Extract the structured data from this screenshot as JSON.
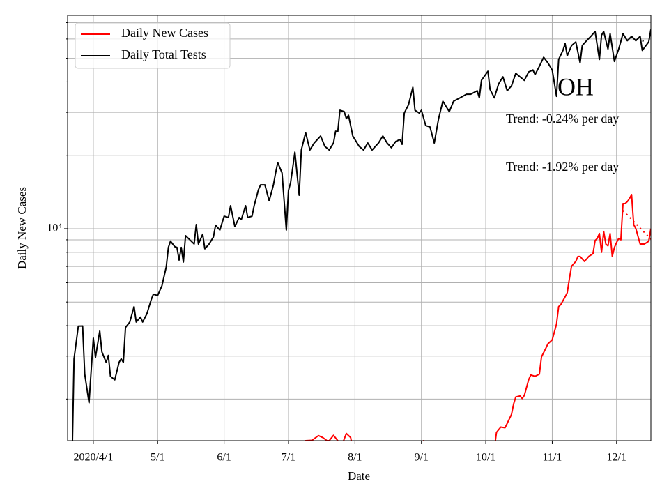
{
  "chart_data": {
    "type": "line",
    "title": "OH",
    "x_label": "Date",
    "y_label": "Daily New Cases",
    "yscale": "log",
    "grid": true,
    "legend_position": "upper left",
    "xlim": [
      "2020-03-20",
      "2020-12-17"
    ],
    "xticks": [
      {
        "value": "2020-04-01",
        "label": "2020/4/1"
      },
      {
        "value": "2020-05-01",
        "label": "5/1"
      },
      {
        "value": "2020-06-01",
        "label": "6/1"
      },
      {
        "value": "2020-07-01",
        "label": "7/1"
      },
      {
        "value": "2020-08-01",
        "label": "8/1"
      },
      {
        "value": "2020-09-01",
        "label": "9/1"
      },
      {
        "value": "2020-10-01",
        "label": "10/1"
      },
      {
        "value": "2020-11-01",
        "label": "11/1"
      },
      {
        "value": "2020-12-01",
        "label": "12/1"
      }
    ],
    "ylim": [
      1350,
      75000
    ],
    "yticks": [
      {
        "value": 10000,
        "label": "10⁴"
      }
    ],
    "minor_yticks": [
      2000,
      3000,
      4000,
      5000,
      6000,
      7000,
      8000,
      9000,
      20000,
      30000,
      40000,
      50000,
      60000,
      70000
    ],
    "annotations": [
      "Trend: -0.24% per day",
      "Trend: -1.92% per day"
    ],
    "series": [
      {
        "name": "Daily New Cases",
        "color": "#ff0000",
        "x": [
          "2020-07-05",
          "2020-07-09",
          "2020-07-12",
          "2020-07-15",
          "2020-07-17",
          "2020-07-19",
          "2020-07-20",
          "2020-07-22",
          "2020-07-24",
          "2020-07-26",
          "2020-07-28",
          "2020-07-30",
          "2020-07-31",
          "2020-08-10",
          "2020-08-25",
          "2020-09-02",
          "2020-09-05",
          "2020-09-20",
          "2020-10-04",
          "2020-10-05",
          "2020-10-06",
          "2020-10-08",
          "2020-10-10",
          "2020-10-11",
          "2020-10-13",
          "2020-10-14",
          "2020-10-15",
          "2020-10-17",
          "2020-10-18",
          "2020-10-19",
          "2020-10-21",
          "2020-10-22",
          "2020-10-24",
          "2020-10-26",
          "2020-10-27",
          "2020-10-29",
          "2020-10-30",
          "2020-11-01",
          "2020-11-03",
          "2020-11-04",
          "2020-11-05",
          "2020-11-07",
          "2020-11-08",
          "2020-11-09",
          "2020-11-10",
          "2020-11-12",
          "2020-11-13",
          "2020-11-14",
          "2020-11-16",
          "2020-11-17",
          "2020-11-18",
          "2020-11-20",
          "2020-11-21",
          "2020-11-22",
          "2020-11-23",
          "2020-11-24",
          "2020-11-25",
          "2020-11-26",
          "2020-11-27",
          "2020-11-28",
          "2020-11-29",
          "2020-11-30",
          "2020-12-01",
          "2020-12-02",
          "2020-12-03",
          "2020-12-04",
          "2020-12-05",
          "2020-12-06",
          "2020-12-07",
          "2020-12-08",
          "2020-12-09",
          "2020-12-10",
          "2020-12-12",
          "2020-12-14",
          "2020-12-16",
          "2020-12-17"
        ],
        "values": [
          1200,
          1350,
          1355,
          1416,
          1390,
          1350,
          1350,
          1420,
          1350,
          1300,
          1445,
          1390,
          1250,
          1150,
          1200,
          1350,
          1200,
          1150,
          1200,
          1250,
          1460,
          1535,
          1525,
          1590,
          1730,
          1910,
          2040,
          2060,
          2010,
          2070,
          2400,
          2510,
          2480,
          2530,
          2980,
          3230,
          3370,
          3500,
          4060,
          4790,
          4880,
          5250,
          5460,
          6230,
          7010,
          7340,
          7690,
          7690,
          7340,
          7500,
          7690,
          7890,
          8940,
          9120,
          9550,
          8000,
          9740,
          8650,
          8500,
          9550,
          7690,
          8375,
          8770,
          9120,
          9000,
          12670,
          12670,
          12900,
          13270,
          13800,
          10400,
          10000,
          8650,
          8650,
          8880,
          10000
        ]
      },
      {
        "name": "Daily Total Tests",
        "color": "#000000",
        "x": [
          "2020-03-22",
          "2020-03-23",
          "2020-03-25",
          "2020-03-27",
          "2020-03-28",
          "2020-03-30",
          "2020-04-01",
          "2020-04-02",
          "2020-04-04",
          "2020-04-05",
          "2020-04-07",
          "2020-04-08",
          "2020-04-09",
          "2020-04-11",
          "2020-04-13",
          "2020-04-14",
          "2020-04-15",
          "2020-04-16",
          "2020-04-18",
          "2020-04-20",
          "2020-04-21",
          "2020-04-23",
          "2020-04-24",
          "2020-04-26",
          "2020-04-28",
          "2020-04-29",
          "2020-05-01",
          "2020-05-03",
          "2020-05-05",
          "2020-05-06",
          "2020-05-07",
          "2020-05-09",
          "2020-05-10",
          "2020-05-11",
          "2020-05-12",
          "2020-05-13",
          "2020-05-14",
          "2020-05-16",
          "2020-05-18",
          "2020-05-19",
          "2020-05-20",
          "2020-05-22",
          "2020-05-23",
          "2020-05-25",
          "2020-05-27",
          "2020-05-28",
          "2020-05-30",
          "2020-06-01",
          "2020-06-03",
          "2020-06-04",
          "2020-06-06",
          "2020-06-08",
          "2020-06-09",
          "2020-06-11",
          "2020-06-12",
          "2020-06-14",
          "2020-06-15",
          "2020-06-17",
          "2020-06-18",
          "2020-06-20",
          "2020-06-22",
          "2020-06-24",
          "2020-06-25",
          "2020-06-26",
          "2020-06-28",
          "2020-06-30",
          "2020-07-01",
          "2020-07-02",
          "2020-07-03",
          "2020-07-04",
          "2020-07-06",
          "2020-07-07",
          "2020-07-09",
          "2020-07-11",
          "2020-07-13",
          "2020-07-16",
          "2020-07-18",
          "2020-07-20",
          "2020-07-22",
          "2020-07-23",
          "2020-07-24",
          "2020-07-25",
          "2020-07-27",
          "2020-07-28",
          "2020-07-29",
          "2020-07-31",
          "2020-08-03",
          "2020-08-05",
          "2020-08-07",
          "2020-08-09",
          "2020-08-12",
          "2020-08-14",
          "2020-08-16",
          "2020-08-18",
          "2020-08-20",
          "2020-08-22",
          "2020-08-23",
          "2020-08-24",
          "2020-08-26",
          "2020-08-28",
          "2020-08-29",
          "2020-08-31",
          "2020-09-01",
          "2020-09-03",
          "2020-09-05",
          "2020-09-07",
          "2020-09-09",
          "2020-09-11",
          "2020-09-14",
          "2020-09-16",
          "2020-09-19",
          "2020-09-22",
          "2020-09-24",
          "2020-09-27",
          "2020-09-28",
          "2020-09-29",
          "2020-10-02",
          "2020-10-03",
          "2020-10-05",
          "2020-10-07",
          "2020-10-09",
          "2020-10-11",
          "2020-10-13",
          "2020-10-15",
          "2020-10-17",
          "2020-10-19",
          "2020-10-21",
          "2020-10-23",
          "2020-10-24",
          "2020-10-26",
          "2020-10-28",
          "2020-10-30",
          "2020-11-01",
          "2020-11-03",
          "2020-11-04",
          "2020-11-06",
          "2020-11-07",
          "2020-11-08",
          "2020-11-10",
          "2020-11-12",
          "2020-11-14",
          "2020-11-15",
          "2020-11-17",
          "2020-11-19",
          "2020-11-21",
          "2020-11-23",
          "2020-11-24",
          "2020-11-25",
          "2020-11-27",
          "2020-11-28",
          "2020-11-30",
          "2020-12-02",
          "2020-12-04",
          "2020-12-06",
          "2020-12-08",
          "2020-12-10",
          "2020-12-12",
          "2020-12-13",
          "2020-12-14",
          "2020-12-16",
          "2020-12-17"
        ],
        "values": [
          1000,
          2924,
          3981,
          3990,
          2529,
          1931,
          3558,
          2963,
          3802,
          3120,
          2828,
          3020,
          2479,
          2399,
          2828,
          2924,
          2828,
          3929,
          4140,
          4786,
          4140,
          4336,
          4140,
          4480,
          5115,
          5386,
          5320,
          5834,
          6966,
          8375,
          8888,
          8431,
          8375,
          7434,
          8375,
          7295,
          9362,
          9000,
          8650,
          10402,
          8650,
          9488,
          8269,
          8650,
          9240,
          10335,
          9869,
          11250,
          11110,
          12420,
          10200,
          11110,
          10890,
          12420,
          11110,
          11250,
          12420,
          14454,
          15130,
          15130,
          13010,
          15130,
          16930,
          18660,
          16930,
          9869,
          14350,
          15450,
          17830,
          20610,
          13710,
          21030,
          24770,
          21030,
          22460,
          23990,
          21740,
          21030,
          22460,
          25120,
          25000,
          30600,
          30200,
          28260,
          29200,
          23990,
          21740,
          21030,
          22460,
          21030,
          22460,
          23990,
          22460,
          21480,
          22780,
          23210,
          22190,
          29800,
          32270,
          38020,
          30600,
          29800,
          30600,
          26490,
          26130,
          22460,
          28260,
          33340,
          30200,
          33340,
          34430,
          35600,
          35600,
          36810,
          34430,
          40600,
          44230,
          37270,
          34430,
          39270,
          41950,
          36810,
          38530,
          43370,
          41950,
          40600,
          43950,
          44770,
          42850,
          46350,
          50470,
          47860,
          44770,
          34910,
          49430,
          53830,
          57540,
          51170,
          56380,
          58340,
          47860,
          56380,
          59020,
          61500,
          64380,
          49430,
          62230,
          64380,
          54580,
          63100,
          48530,
          54580,
          63100,
          59020,
          61500,
          59020,
          61500,
          53830,
          55340,
          58340,
          65620
        ]
      }
    ],
    "trend_lines": [
      {
        "color": "#ff0000",
        "style": "dotted",
        "x": [
          "2020-12-04",
          "2020-12-17"
        ],
        "values": [
          11870,
          9060
        ]
      },
      {
        "color": "#000000",
        "style": "dotted",
        "x": [
          "2020-12-13",
          "2020-12-17"
        ],
        "values": [
          59000,
          57000
        ]
      }
    ]
  }
}
